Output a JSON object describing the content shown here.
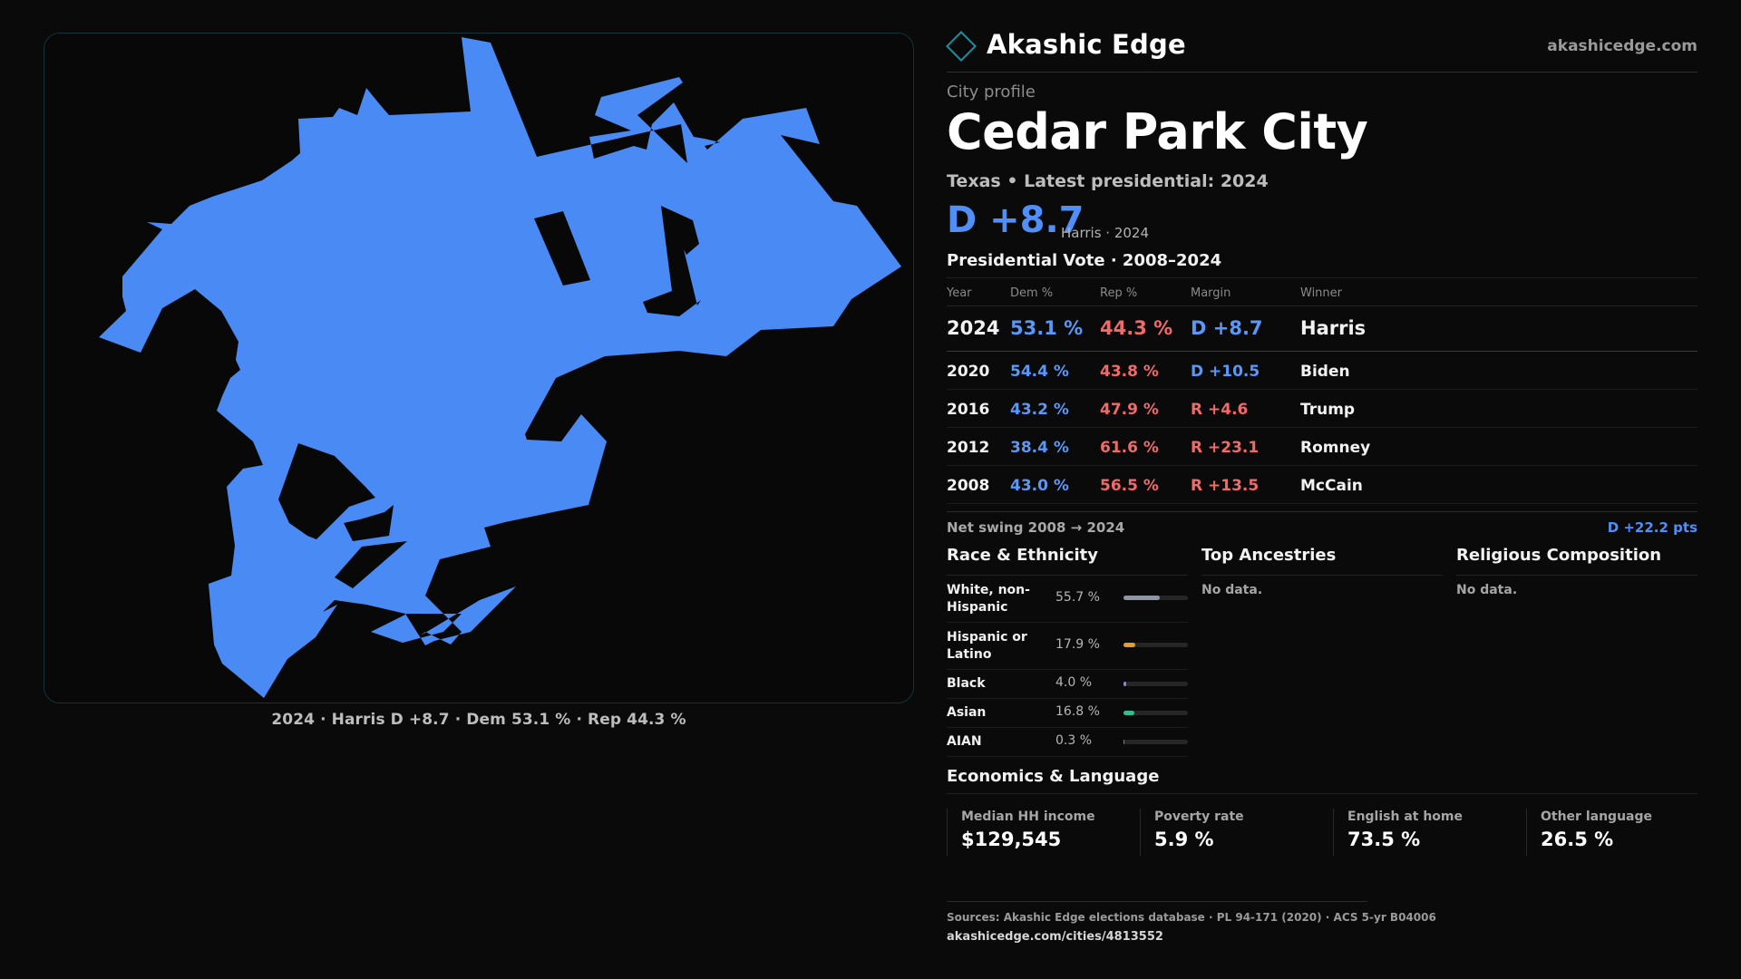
{
  "brand": {
    "name": "Akashic Edge",
    "site": "akashicedge.com",
    "accent": "#1e8fa0"
  },
  "map": {
    "fill_color": "#4a8af4",
    "caption": "2024 · Harris D +8.7 · Dem 53.1 % · Rep 44.3 %"
  },
  "profile": {
    "eyebrow": "City profile",
    "city": "Cedar Park City",
    "subline": "Texas • Latest presidential: 2024",
    "margin": "D +8.7",
    "margin_note": "Harris · 2024"
  },
  "presidential": {
    "title": "Presidential Vote · 2008–2024",
    "headers": {
      "year": "Year",
      "dem": "Dem %",
      "rep": "Rep %",
      "margin": "Margin",
      "winner": "Winner"
    },
    "rows": [
      {
        "year": "2024",
        "dem": "53.1 %",
        "rep": "44.3 %",
        "margin": "D +8.7",
        "winner": "Harris"
      },
      {
        "year": "2020",
        "dem": "54.4 %",
        "rep": "43.8 %",
        "margin": "D +10.5",
        "winner": "Biden"
      },
      {
        "year": "2016",
        "dem": "43.2 %",
        "rep": "47.9 %",
        "margin": "R +4.6",
        "winner": "Trump"
      },
      {
        "year": "2012",
        "dem": "38.4 %",
        "rep": "61.6 %",
        "margin": "R +23.1",
        "winner": "Romney"
      },
      {
        "year": "2008",
        "dem": "43.0 %",
        "rep": "56.5 %",
        "margin": "R +13.5",
        "winner": "McCain"
      }
    ],
    "swing_label": "Net swing 2008 → 2024",
    "swing_value": "D +22.2 pts"
  },
  "race": {
    "title": "Race & Ethnicity",
    "rows": [
      {
        "label": "White, non-Hispanic",
        "value": "55.7 %",
        "pct": 55.7,
        "color": "#8c96a8"
      },
      {
        "label": "Hispanic or Latino",
        "value": "17.9 %",
        "pct": 17.9,
        "color": "#e89a2e"
      },
      {
        "label": "Black",
        "value": "4.0 %",
        "pct": 4.0,
        "color": "#8b7fe8"
      },
      {
        "label": "Asian",
        "value": "16.8 %",
        "pct": 16.8,
        "color": "#2fbf8f"
      },
      {
        "label": "AIAN",
        "value": "0.3 %",
        "pct": 0.3,
        "color": "#d2603a"
      }
    ]
  },
  "ancestries": {
    "title": "Top Ancestries",
    "empty": "No data."
  },
  "religion": {
    "title": "Religious Composition",
    "empty": "No data."
  },
  "economics": {
    "title": "Economics & Language",
    "stats": [
      {
        "label": "Median HH income",
        "value": "$129,545"
      },
      {
        "label": "Poverty rate",
        "value": "5.9 %"
      },
      {
        "label": "English at home",
        "value": "73.5 %"
      },
      {
        "label": "Other language",
        "value": "26.5 %"
      }
    ]
  },
  "footer": {
    "sources": "Sources: Akashic Edge elections database · PL 94-171 (2020) · ACS 5-yr B04006",
    "url": "akashicedge.com/cities/4813552"
  }
}
